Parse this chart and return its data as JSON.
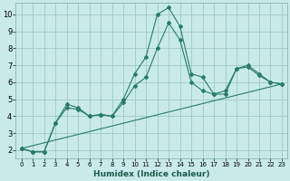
{
  "xlabel": "Humidex (Indice chaleur)",
  "bg_color": "#c8eaea",
  "grid_color": "#a0c8c8",
  "line_color": "#2a7a6a",
  "xlim": [
    -0.5,
    23.5
  ],
  "ylim": [
    1.5,
    10.7
  ],
  "xticks": [
    0,
    1,
    2,
    3,
    4,
    5,
    6,
    7,
    8,
    9,
    10,
    11,
    12,
    13,
    14,
    15,
    16,
    17,
    18,
    19,
    20,
    21,
    22,
    23
  ],
  "yticks": [
    2,
    3,
    4,
    5,
    6,
    7,
    8,
    9,
    10
  ],
  "line1_x": [
    0,
    1,
    2,
    3,
    4,
    5,
    6,
    7,
    8,
    9,
    10,
    11,
    12,
    13,
    14,
    15,
    16,
    17,
    18,
    19,
    20,
    21,
    22,
    23
  ],
  "line1_y": [
    2.1,
    1.9,
    1.9,
    3.6,
    4.7,
    4.5,
    4.0,
    4.1,
    4.0,
    5.0,
    6.5,
    7.5,
    10.0,
    10.4,
    9.3,
    6.5,
    6.3,
    5.3,
    5.3,
    6.8,
    7.0,
    6.5,
    6.0,
    5.9
  ],
  "line2_x": [
    0,
    1,
    2,
    3,
    4,
    5,
    6,
    7,
    8,
    9,
    10,
    11,
    12,
    13,
    14,
    15,
    16,
    17,
    18,
    19,
    20,
    21,
    22,
    23
  ],
  "line2_y": [
    2.1,
    1.9,
    1.9,
    3.6,
    4.5,
    4.4,
    4.0,
    4.1,
    4.0,
    4.8,
    5.8,
    6.3,
    8.0,
    9.5,
    8.5,
    6.0,
    5.5,
    5.3,
    5.5,
    6.8,
    6.9,
    6.4,
    6.0,
    5.9
  ],
  "line3_x": [
    0,
    23
  ],
  "line3_y": [
    2.1,
    5.9
  ],
  "marker_size": 2.0,
  "line_width": 0.8
}
